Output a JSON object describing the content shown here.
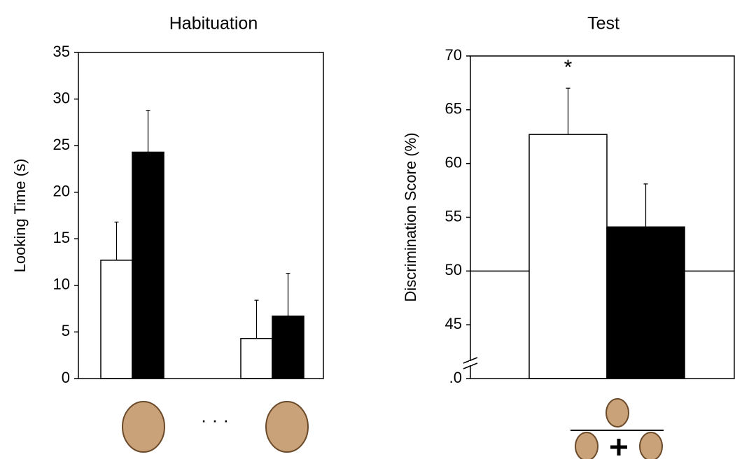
{
  "chart_data": [
    {
      "type": "bar",
      "title": "Habituation",
      "ylabel": "Looking Time (s)",
      "categories": [
        null,
        null
      ],
      "series": [
        {
          "color": "#ffffff",
          "values": [
            12.7,
            4.3
          ],
          "errors": [
            4.1,
            4.1
          ]
        },
        {
          "color": "#000000",
          "values": [
            24.3,
            6.7
          ],
          "errors": [
            4.5,
            4.6
          ]
        }
      ],
      "ylim": [
        0,
        35
      ],
      "yticks": [
        0,
        5,
        10,
        15,
        20,
        25,
        30,
        35
      ],
      "annotations": [
        "· · ·"
      ]
    },
    {
      "type": "bar",
      "title": "Test",
      "ylabel": "Discrimination Score (%)",
      "categories": [
        null
      ],
      "series": [
        {
          "color": "#ffffff",
          "values": [
            62.7
          ],
          "errors": [
            4.3
          ]
        },
        {
          "color": "#000000",
          "values": [
            54.1
          ],
          "errors": [
            4.0
          ]
        }
      ],
      "ylim": [
        40,
        70
      ],
      "yticks": [
        {
          "value": 40,
          "label": ".0"
        },
        45,
        50,
        55,
        60,
        65,
        70
      ],
      "reference_line": 50,
      "axis_break": true,
      "annotations": [
        "*"
      ]
    }
  ]
}
